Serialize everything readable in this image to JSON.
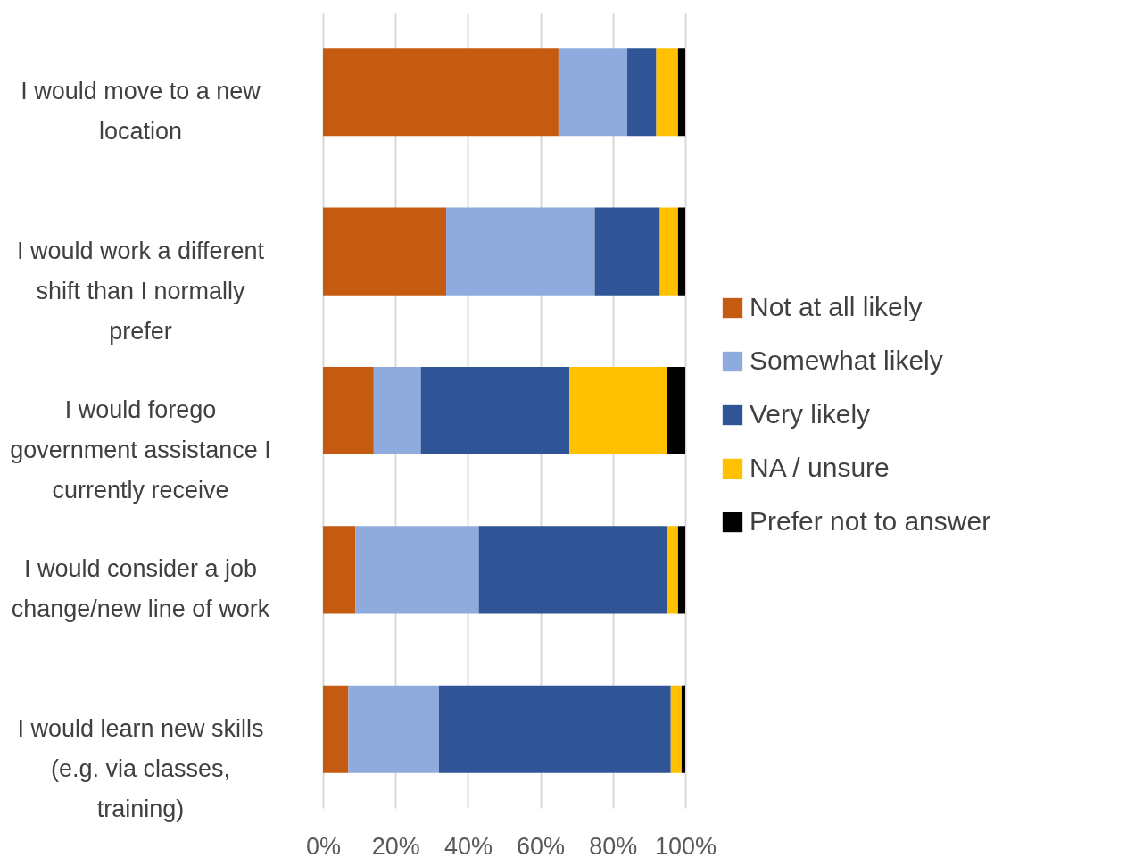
{
  "chart_data": {
    "type": "bar",
    "orientation": "horizontal",
    "stacked": true,
    "categories": [
      "I would move to a new location",
      "I would work a different shift than I normally prefer",
      "I would forego government assistance I currently receive",
      "I would consider a job change/new line of work",
      "I would learn new skills (e.g. via classes, training)"
    ],
    "series": [
      {
        "name": "Not at all likely",
        "color": "#c55a11",
        "values": [
          65,
          34,
          14,
          9,
          7
        ]
      },
      {
        "name": "Somewhat likely",
        "color": "#8faadc",
        "values": [
          19,
          41,
          13,
          34,
          25
        ]
      },
      {
        "name": "Very likely",
        "color": "#2f5597",
        "values": [
          8,
          18,
          41,
          52,
          64
        ]
      },
      {
        "name": "NA / unsure",
        "color": "#ffc000",
        "values": [
          6,
          5,
          27,
          3,
          3
        ]
      },
      {
        "name": "Prefer not to answer",
        "color": "#000000",
        "values": [
          2,
          2,
          5,
          2,
          1
        ]
      }
    ],
    "xlim": [
      0,
      100
    ],
    "xticks": [
      {
        "value": 0,
        "label": "0%"
      },
      {
        "value": 20,
        "label": "20%"
      },
      {
        "value": 40,
        "label": "40%"
      },
      {
        "value": 60,
        "label": "60%"
      },
      {
        "value": 80,
        "label": "80%"
      },
      {
        "value": 100,
        "label": "100%"
      }
    ],
    "grid": "x",
    "legend": "right"
  }
}
